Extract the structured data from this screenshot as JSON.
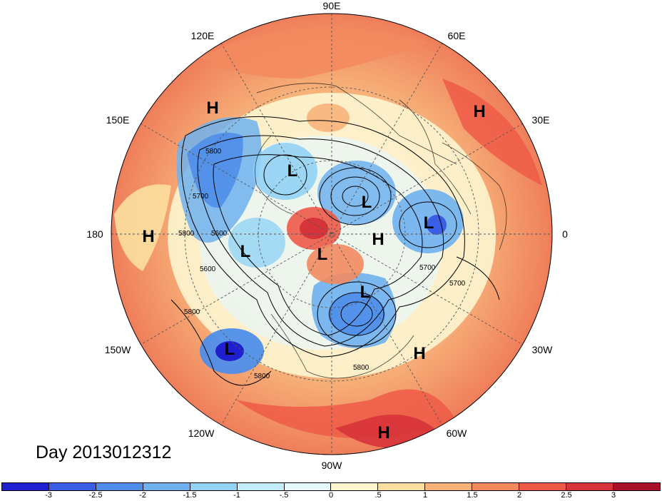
{
  "title": "Day 2013012312",
  "longitude_labels": {
    "deg90e": "90E",
    "deg120e": "120E",
    "deg60e": "60E",
    "deg150e": "150E",
    "deg30e": "30E",
    "deg180": "180",
    "deg0": "0",
    "deg150w": "150W",
    "deg30w": "30W",
    "deg120w": "120W",
    "deg60w": "60W",
    "deg90w": "90W"
  },
  "pressure_centers": [
    "H",
    "H",
    "H",
    "H",
    "H",
    "H",
    "L",
    "L",
    "L",
    "L",
    "L",
    "L",
    "L"
  ],
  "contour_labels": [
    "5800",
    "5700",
    "5600",
    "5800",
    "5700",
    "5800",
    "5600",
    "5800",
    "5700",
    "5800"
  ],
  "colorbar": {
    "labels": [
      "-3",
      "-2.5",
      "-2",
      "-1.5",
      "-1",
      "-.5",
      "0",
      ".5",
      "1",
      "1.5",
      "2",
      "2.5",
      "3"
    ],
    "colors": [
      "#1f1fcf",
      "#3a5fe6",
      "#4f8ee9",
      "#6fb1ef",
      "#92d3f5",
      "#c2ecf8",
      "#e6f6fb",
      "#fdf5d0",
      "#fbdfa0",
      "#f7b27a",
      "#f28a5e",
      "#ee5a48",
      "#d7333a",
      "#a8102a"
    ]
  }
}
